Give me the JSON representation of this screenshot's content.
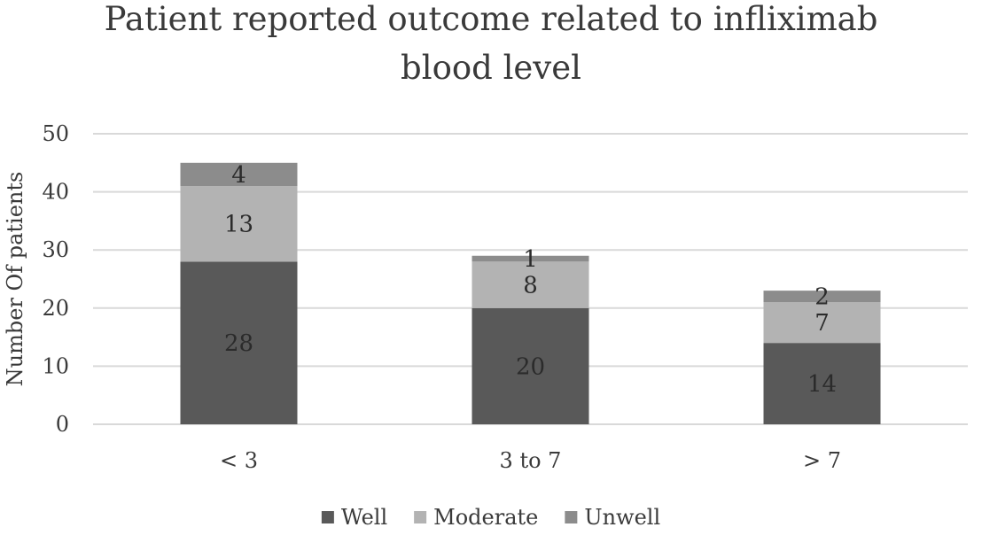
{
  "chart_data": {
    "type": "bar",
    "stacked": true,
    "title": "Patient reported outcome related to infliximab blood level",
    "title_lines": [
      "Patient reported outcome related to infliximab",
      "blood level"
    ],
    "xlabel": "",
    "ylabel": "Number Of patients",
    "categories": [
      "< 3",
      "3 to 7",
      "> 7"
    ],
    "series": [
      {
        "name": "Well",
        "values": [
          28,
          20,
          14
        ],
        "color": "#595959",
        "label_color": "#2b2b2b"
      },
      {
        "name": "Moderate",
        "values": [
          13,
          8,
          7
        ],
        "color": "#b3b3b3",
        "label_color": "#2b2b2b"
      },
      {
        "name": "Unwell",
        "values": [
          4,
          1,
          2
        ],
        "color": "#8c8c8c",
        "label_color": "#2b2b2b"
      }
    ],
    "ylim": [
      0,
      50
    ],
    "yticks": [
      0,
      10,
      20,
      30,
      40,
      50
    ],
    "grid": true,
    "legend_position": "bottom"
  }
}
